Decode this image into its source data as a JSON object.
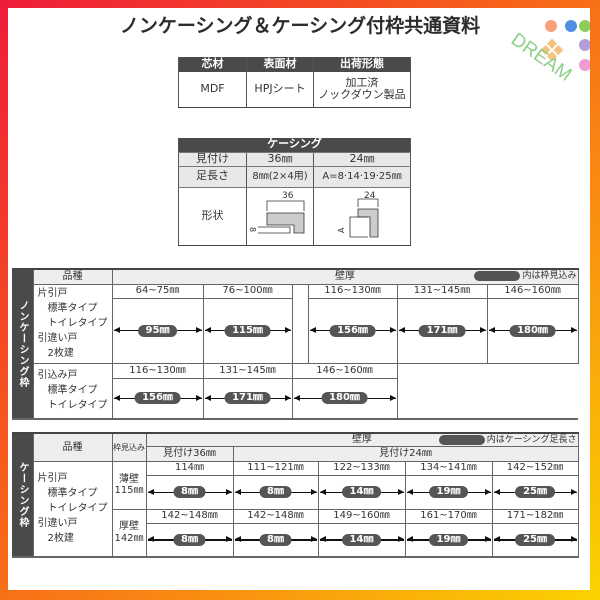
{
  "title": "ノンケーシング＆ケーシング付枠共通資料",
  "logo": {
    "text": "DREAM",
    "dot_colors": [
      "#f7a07a",
      "#4f8ee0",
      "#8ccc5a",
      "#b39ddb",
      "#f09ad6"
    ],
    "tile_color": "#f7c27a"
  },
  "materials": {
    "headers": [
      "芯材",
      "表面材",
      "出荷形態"
    ],
    "values": [
      "MDF",
      "HPJシート",
      "加工済",
      "ノックダウン製品"
    ]
  },
  "casing": {
    "title": "ケーシング",
    "rows": [
      {
        "label": "見付け",
        "a": "36㎜",
        "b": "24㎜"
      },
      {
        "label": "足長さ",
        "a": "8㎜(2×4用)",
        "b": "A=8·14·19·25㎜"
      }
    ],
    "shape_label": "形状",
    "shape_a_dims": [
      "36",
      "8"
    ],
    "shape_b_dims": [
      "24",
      "A"
    ]
  },
  "noncasing": {
    "side_label": "ノンケーシング枠",
    "kind_header": "品種",
    "wall_header": "壁厚",
    "note": "内は枠見込み",
    "row1_kinds": [
      "片引戸",
      "標準タイプ",
      "トイレタイプ",
      "引違い戸",
      "2枚建"
    ],
    "row1": [
      {
        "range": "64~75㎜",
        "value": "95㎜"
      },
      {
        "range": "76~100㎜",
        "value": "115㎜"
      },
      {
        "range": "116~130㎜",
        "value": "156㎜"
      },
      {
        "range": "131~145㎜",
        "value": "171㎜"
      },
      {
        "range": "146~160㎜",
        "value": "180㎜"
      }
    ],
    "row2_kinds": [
      "引込み戸",
      "標準タイプ",
      "トイレタイプ"
    ],
    "row2": [
      {
        "range": "116~130㎜",
        "value": "156㎜"
      },
      {
        "range": "131~145㎜",
        "value": "171㎜"
      },
      {
        "range": "146~160㎜",
        "value": "180㎜"
      }
    ]
  },
  "casingframe": {
    "side_label": "ケーシング枠",
    "kind_header": "品種",
    "depth_header": "枠見込み",
    "wall_header": "壁厚",
    "note": "内はケーシング足長さ",
    "sub36": "見付け36㎜",
    "sub24": "見付け24㎜",
    "kinds": [
      "片引戸",
      "標準タイプ",
      "トイレタイプ",
      "引違い戸",
      "2枚建"
    ],
    "thin": {
      "label": "薄壁",
      "depth": "115㎜",
      "cells": [
        {
          "range": "114㎜",
          "value": "8㎜"
        },
        {
          "range": "111~121㎜",
          "value": "8㎜"
        },
        {
          "range": "122~133㎜",
          "value": "14㎜"
        },
        {
          "range": "134~141㎜",
          "value": "19㎜"
        },
        {
          "range": "142~152㎜",
          "value": "25㎜"
        }
      ]
    },
    "thick": {
      "label": "厚壁",
      "depth": "142㎜",
      "cells": [
        {
          "range": "142~148㎜",
          "value": "8㎜"
        },
        {
          "range": "142~148㎜",
          "value": "8㎜"
        },
        {
          "range": "149~160㎜",
          "value": "14㎜"
        },
        {
          "range": "161~170㎜",
          "value": "19㎜"
        },
        {
          "range": "171~182㎜",
          "value": "25㎜"
        }
      ]
    }
  }
}
